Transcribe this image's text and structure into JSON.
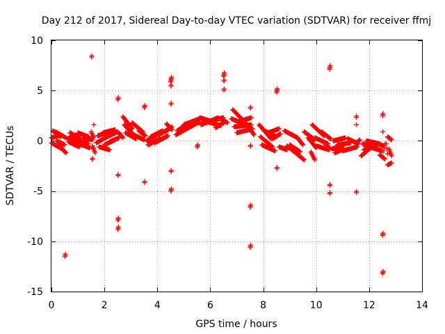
{
  "chart_data": {
    "type": "scatter",
    "title": "Day 212 of 2017, Sidereal Day-to-day VTEC variation (SDTVAR) for receiver ffmj",
    "xlabel": "GPS time / hours",
    "ylabel": "SDTVAR / TECUs",
    "xlim": [
      0,
      14
    ],
    "ylim": [
      -15,
      10
    ],
    "x_ticks": [
      0,
      2,
      4,
      6,
      8,
      10,
      12,
      14
    ],
    "y_ticks": [
      -15,
      -10,
      -5,
      0,
      5,
      10
    ],
    "x_tick_labels": [
      "0",
      "2",
      "4",
      "6",
      "8",
      "10",
      "12",
      "14"
    ],
    "y_tick_labels": [
      "-15",
      "-10",
      "-5",
      "0",
      "5",
      "10"
    ],
    "grid": true,
    "marker": "+",
    "color": "#ff0000",
    "series": [
      {
        "name": "SDTVAR",
        "segments": [
          {
            "x": [
              0.0,
              0.25
            ],
            "y": [
              0.3,
              0.5
            ]
          },
          {
            "x": [
              0.0,
              0.4
            ],
            "y": [
              -0.2,
              -0.8
            ]
          },
          {
            "x": [
              0.05,
              0.35
            ],
            "y": [
              1.0,
              0.4
            ]
          },
          {
            "x": [
              0.15,
              0.55
            ],
            "y": [
              0.9,
              0.3
            ]
          },
          {
            "x": [
              0.2,
              0.5
            ],
            "y": [
              0.0,
              -0.4
            ]
          },
          {
            "x": [
              0.3,
              0.55
            ],
            "y": [
              -0.5,
              -1.2
            ]
          },
          {
            "x": [
              0.6,
              1.0
            ],
            "y": [
              0.2,
              0.6
            ]
          },
          {
            "x": [
              0.65,
              1.05
            ],
            "y": [
              -0.1,
              -0.6
            ]
          },
          {
            "x": [
              0.7,
              1.1
            ],
            "y": [
              0.8,
              0.2
            ]
          },
          {
            "x": [
              0.8,
              1.4
            ],
            "y": [
              0.1,
              -0.3
            ]
          },
          {
            "x": [
              1.0,
              1.4
            ],
            "y": [
              0.8,
              0.4
            ]
          },
          {
            "x": [
              1.05,
              1.45
            ],
            "y": [
              -0.3,
              -0.7
            ]
          },
          {
            "x": [
              1.2,
              1.55
            ],
            "y": [
              0.3,
              0.1
            ]
          },
          {
            "x": [
              1.5,
              1.6
            ],
            "y": [
              0.9,
              0.3
            ]
          },
          {
            "x": [
              1.55,
              1.65
            ],
            "y": [
              -0.5,
              -1.2
            ]
          },
          {
            "x": [
              1.7,
              2.1
            ],
            "y": [
              -0.2,
              0.4
            ]
          },
          {
            "x": [
              1.75,
              2.15
            ],
            "y": [
              0.5,
              0.9
            ]
          },
          {
            "x": [
              1.8,
              2.2
            ],
            "y": [
              -0.6,
              -0.9
            ]
          },
          {
            "x": [
              1.95,
              2.4
            ],
            "y": [
              0.8,
              1.1
            ]
          },
          {
            "x": [
              2.0,
              2.4
            ],
            "y": [
              -0.4,
              0.1
            ]
          },
          {
            "x": [
              2.1,
              2.5
            ],
            "y": [
              0.4,
              0.9
            ]
          },
          {
            "x": [
              2.2,
              2.55
            ],
            "y": [
              -0.1,
              0.3
            ]
          },
          {
            "x": [
              2.55,
              2.7
            ],
            "y": [
              0.8,
              0.3
            ]
          },
          {
            "x": [
              2.7,
              3.05
            ],
            "y": [
              2.4,
              1.2
            ]
          },
          {
            "x": [
              2.75,
              3.1
            ],
            "y": [
              1.6,
              0.6
            ]
          },
          {
            "x": [
              2.8,
              3.2
            ],
            "y": [
              0.8,
              0.2
            ]
          },
          {
            "x": [
              3.05,
              3.45
            ],
            "y": [
              1.8,
              0.9
            ]
          },
          {
            "x": [
              3.1,
              3.5
            ],
            "y": [
              0.6,
              0.1
            ]
          },
          {
            "x": [
              3.3,
              3.55
            ],
            "y": [
              1.0,
              0.5
            ]
          },
          {
            "x": [
              3.6,
              4.0
            ],
            "y": [
              0.0,
              0.6
            ]
          },
          {
            "x": [
              3.65,
              4.1
            ],
            "y": [
              -0.4,
              0.2
            ]
          },
          {
            "x": [
              3.75,
              4.2
            ],
            "y": [
              0.4,
              1.0
            ]
          },
          {
            "x": [
              3.9,
              4.4
            ],
            "y": [
              -0.2,
              0.5
            ]
          },
          {
            "x": [
              4.05,
              4.45
            ],
            "y": [
              0.6,
              1.2
            ]
          },
          {
            "x": [
              4.3,
              4.55
            ],
            "y": [
              0.9,
              1.4
            ]
          },
          {
            "x": [
              4.35,
              4.55
            ],
            "y": [
              1.7,
              1.1
            ]
          },
          {
            "x": [
              4.7,
              5.25
            ],
            "y": [
              0.6,
              1.4
            ]
          },
          {
            "x": [
              4.75,
              5.2
            ],
            "y": [
              1.0,
              1.8
            ]
          },
          {
            "x": [
              4.9,
              5.5
            ],
            "y": [
              1.2,
              2.0
            ]
          },
          {
            "x": [
              5.0,
              5.6
            ],
            "y": [
              1.6,
              2.2
            ]
          },
          {
            "x": [
              5.25,
              5.6
            ],
            "y": [
              1.4,
              1.9
            ]
          },
          {
            "x": [
              5.6,
              6.2
            ],
            "y": [
              2.3,
              1.8
            ]
          },
          {
            "x": [
              5.65,
              6.3
            ],
            "y": [
              1.6,
              2.3
            ]
          },
          {
            "x": [
              5.75,
              6.4
            ],
            "y": [
              2.0,
              1.5
            ]
          },
          {
            "x": [
              5.85,
              6.5
            ],
            "y": [
              1.9,
              2.3
            ]
          },
          {
            "x": [
              6.2,
              6.55
            ],
            "y": [
              1.3,
              1.9
            ]
          },
          {
            "x": [
              6.4,
              6.65
            ],
            "y": [
              2.2,
              1.8
            ]
          },
          {
            "x": [
              6.8,
              7.5
            ],
            "y": [
              2.2,
              1.4
            ]
          },
          {
            "x": [
              6.85,
              7.4
            ],
            "y": [
              3.1,
              1.6
            ]
          },
          {
            "x": [
              6.9,
              7.55
            ],
            "y": [
              1.4,
              1.6
            ]
          },
          {
            "x": [
              7.0,
              7.6
            ],
            "y": [
              0.8,
              1.2
            ]
          },
          {
            "x": [
              7.05,
              7.55
            ],
            "y": [
              1.9,
              2.3
            ]
          },
          {
            "x": [
              7.4,
              7.65
            ],
            "y": [
              1.6,
              0.6
            ]
          },
          {
            "x": [
              7.85,
              8.3
            ],
            "y": [
              1.6,
              0.2
            ]
          },
          {
            "x": [
              7.9,
              8.35
            ],
            "y": [
              0.4,
              -0.6
            ]
          },
          {
            "x": [
              7.95,
              8.45
            ],
            "y": [
              -0.4,
              -1.0
            ]
          },
          {
            "x": [
              8.05,
              8.5
            ],
            "y": [
              1.0,
              0.4
            ]
          },
          {
            "x": [
              8.2,
              8.6
            ],
            "y": [
              0.8,
              1.2
            ]
          },
          {
            "x": [
              8.35,
              8.65
            ],
            "y": [
              0.2,
              0.7
            ]
          },
          {
            "x": [
              8.6,
              8.9
            ],
            "y": [
              -0.6,
              -0.9
            ]
          },
          {
            "x": [
              8.8,
              9.3
            ],
            "y": [
              1.0,
              0.3
            ]
          },
          {
            "x": [
              8.9,
              9.55
            ],
            "y": [
              -0.5,
              -1.9
            ]
          },
          {
            "x": [
              9.0,
              9.4
            ],
            "y": [
              -0.4,
              -1.1
            ]
          },
          {
            "x": [
              9.3,
              9.5
            ],
            "y": [
              0.3,
              -0.4
            ]
          },
          {
            "x": [
              9.55,
              9.95
            ],
            "y": [
              0.9,
              0.1
            ]
          },
          {
            "x": [
              9.7,
              10.0
            ],
            "y": [
              0.3,
              -0.7
            ]
          },
          {
            "x": [
              9.8,
              9.95
            ],
            "y": [
              -1.1,
              -1.9
            ]
          },
          {
            "x": [
              9.85,
              10.3
            ],
            "y": [
              1.6,
              0.5
            ]
          },
          {
            "x": [
              9.95,
              10.45
            ],
            "y": [
              0.3,
              -0.3
            ]
          },
          {
            "x": [
              10.0,
              10.5
            ],
            "y": [
              -0.5,
              -0.9
            ]
          },
          {
            "x": [
              10.2,
              10.55
            ],
            "y": [
              0.9,
              0.2
            ]
          },
          {
            "x": [
              10.3,
              10.5
            ],
            "y": [
              -0.2,
              -0.7
            ]
          },
          {
            "x": [
              10.6,
              11.0
            ],
            "y": [
              -0.8,
              -0.5
            ]
          },
          {
            "x": [
              10.65,
              11.1
            ],
            "y": [
              0.0,
              0.3
            ]
          },
          {
            "x": [
              10.7,
              11.05
            ],
            "y": [
              -1.2,
              -0.8
            ]
          },
          {
            "x": [
              10.8,
              11.3
            ],
            "y": [
              -0.4,
              -0.2
            ]
          },
          {
            "x": [
              11.0,
              11.55
            ],
            "y": [
              -1.0,
              -0.6
            ]
          },
          {
            "x": [
              11.2,
              11.6
            ],
            "y": [
              0.2,
              -0.3
            ]
          },
          {
            "x": [
              11.5,
              11.65
            ],
            "y": [
              -0.3,
              0.1
            ]
          },
          {
            "x": [
              11.7,
              12.1
            ],
            "y": [
              -1.5,
              -0.6
            ]
          },
          {
            "x": [
              11.75,
              12.3
            ],
            "y": [
              -0.3,
              -0.7
            ]
          },
          {
            "x": [
              11.8,
              12.2
            ],
            "y": [
              -0.9,
              -0.4
            ]
          },
          {
            "x": [
              11.9,
              12.4
            ],
            "y": [
              0.0,
              -0.3
            ]
          },
          {
            "x": [
              12.0,
              12.5
            ],
            "y": [
              -0.6,
              -1.0
            ]
          },
          {
            "x": [
              12.2,
              12.55
            ],
            "y": [
              -0.2,
              -0.5
            ]
          },
          {
            "x": [
              12.4,
              12.6
            ],
            "y": [
              -1.4,
              -1.8
            ]
          },
          {
            "x": [
              12.55,
              12.6
            ],
            "y": [
              -1.0,
              -0.3
            ]
          },
          {
            "x": [
              12.7,
              12.85
            ],
            "y": [
              -2.4,
              -2.2
            ]
          },
          {
            "x": [
              12.7,
              12.85
            ],
            "y": [
              0.4,
              0.1
            ]
          },
          {
            "x": [
              12.75,
              12.85
            ],
            "y": [
              -0.8,
              -1.5
            ]
          },
          {
            "x": [
              12.65,
              12.7
            ],
            "y": [
              -0.3,
              -1.3
            ]
          }
        ],
        "clusters": [
          {
            "x": 0.52,
            "y": -11.4,
            "n": 3
          },
          {
            "x": 1.52,
            "y": 8.4,
            "n": 2
          },
          {
            "x": 1.55,
            "y": -1.8,
            "n": 2
          },
          {
            "x": 1.6,
            "y": 1.6,
            "n": 1
          },
          {
            "x": 2.52,
            "y": 4.2,
            "n": 3
          },
          {
            "x": 2.52,
            "y": -3.4,
            "n": 2
          },
          {
            "x": 2.52,
            "y": -7.8,
            "n": 3
          },
          {
            "x": 2.52,
            "y": -8.7,
            "n": 3
          },
          {
            "x": 3.52,
            "y": 3.4,
            "n": 3
          },
          {
            "x": 3.52,
            "y": -4.1,
            "n": 2
          },
          {
            "x": 4.52,
            "y": 6.1,
            "n": 5
          },
          {
            "x": 4.52,
            "y": 5.5,
            "n": 2
          },
          {
            "x": 4.52,
            "y": 3.7,
            "n": 2
          },
          {
            "x": 4.52,
            "y": -3.0,
            "n": 2
          },
          {
            "x": 4.52,
            "y": -4.9,
            "n": 3
          },
          {
            "x": 5.52,
            "y": -0.5,
            "n": 3
          },
          {
            "x": 6.52,
            "y": 6.6,
            "n": 4
          },
          {
            "x": 6.52,
            "y": 6.0,
            "n": 2
          },
          {
            "x": 6.52,
            "y": 5.1,
            "n": 2
          },
          {
            "x": 7.52,
            "y": 3.3,
            "n": 2
          },
          {
            "x": 7.52,
            "y": -0.5,
            "n": 2
          },
          {
            "x": 7.52,
            "y": -6.5,
            "n": 3
          },
          {
            "x": 7.52,
            "y": -10.5,
            "n": 3
          },
          {
            "x": 8.52,
            "y": 5.0,
            "n": 4
          },
          {
            "x": 8.52,
            "y": -2.7,
            "n": 2
          },
          {
            "x": 10.52,
            "y": 7.3,
            "n": 4
          },
          {
            "x": 10.52,
            "y": -4.4,
            "n": 2
          },
          {
            "x": 10.52,
            "y": -5.2,
            "n": 2
          },
          {
            "x": 11.52,
            "y": 2.4,
            "n": 2
          },
          {
            "x": 11.52,
            "y": 1.6,
            "n": 1
          },
          {
            "x": 11.52,
            "y": -5.1,
            "n": 2
          },
          {
            "x": 12.52,
            "y": 2.6,
            "n": 3
          },
          {
            "x": 12.52,
            "y": 0.9,
            "n": 1
          },
          {
            "x": 12.52,
            "y": -9.3,
            "n": 3
          },
          {
            "x": 12.52,
            "y": -13.1,
            "n": 3
          }
        ]
      }
    ]
  }
}
